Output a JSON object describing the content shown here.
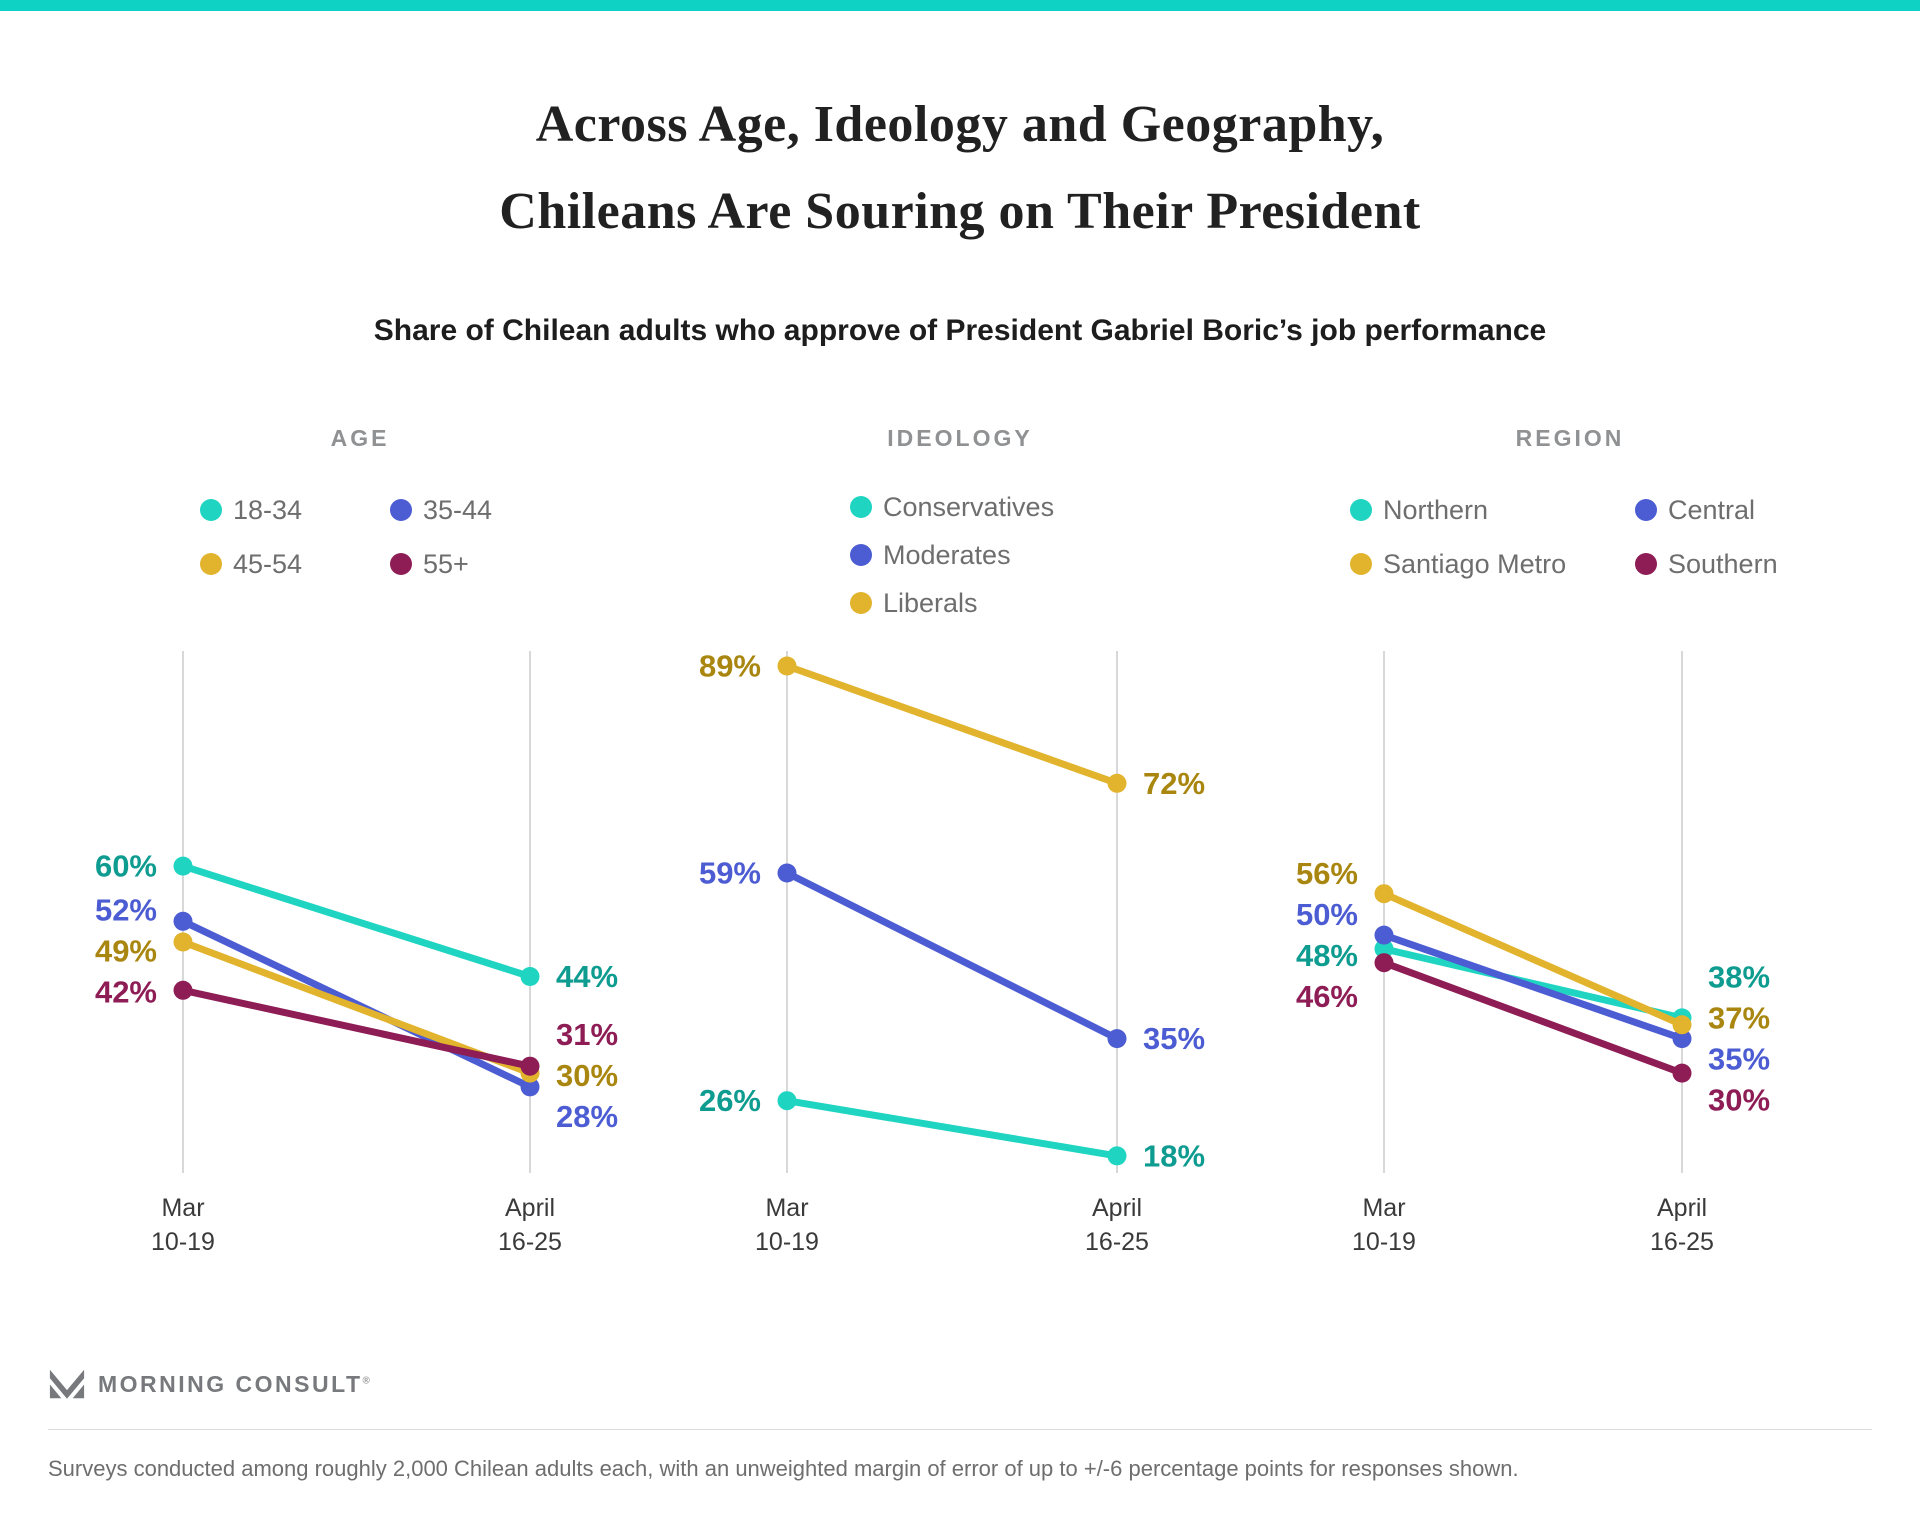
{
  "accent_color": "#0fd2c5",
  "header": {
    "title_lines": [
      "Across Age, Ideology and Geography,",
      "Chileans Are Souring on Their President"
    ],
    "subtitle": "Share of Chilean adults who approve of President Gabriel Boric’s job performance"
  },
  "x_axis": {
    "tick_lines": [
      [
        "Mar",
        "10-19"
      ],
      [
        "April",
        "16-25"
      ]
    ]
  },
  "chart_data": [
    {
      "type": "line",
      "title": "AGE",
      "x": [
        "Mar 10-19",
        "April 16-25"
      ],
      "ylim": [
        14,
        95
      ],
      "grid": "vertical-only",
      "legend_position": "above",
      "series": [
        {
          "name": "18-34",
          "values": [
            60,
            44
          ],
          "color": "#1fd5c2",
          "label_color": "#0e9b90"
        },
        {
          "name": "35-44",
          "values": [
            52,
            28
          ],
          "color": "#4c5cd2",
          "label_color": "#4c5cd2"
        },
        {
          "name": "45-54",
          "values": [
            49,
            30
          ],
          "color": "#e2b32d",
          "label_color": "#a9860f"
        },
        {
          "name": "55+",
          "values": [
            42,
            31
          ],
          "color": "#8e1d55",
          "label_color": "#8e1d55"
        }
      ]
    },
    {
      "type": "line",
      "title": "IDEOLOGY",
      "x": [
        "Mar 10-19",
        "April 16-25"
      ],
      "ylim": [
        14,
        95
      ],
      "grid": "vertical-only",
      "legend_position": "above",
      "series": [
        {
          "name": "Conservatives",
          "values": [
            26,
            18
          ],
          "color": "#1fd5c2",
          "label_color": "#0e9b90"
        },
        {
          "name": "Moderates",
          "values": [
            59,
            35
          ],
          "color": "#4c5cd2",
          "label_color": "#4c5cd2"
        },
        {
          "name": "Liberals",
          "values": [
            89,
            72
          ],
          "color": "#e2b32d",
          "label_color": "#a9860f"
        }
      ]
    },
    {
      "type": "line",
      "title": "REGION",
      "x": [
        "Mar 10-19",
        "April 16-25"
      ],
      "ylim": [
        14,
        95
      ],
      "grid": "vertical-only",
      "legend_position": "above",
      "series": [
        {
          "name": "Northern",
          "values": [
            48,
            38
          ],
          "color": "#1fd5c2",
          "label_color": "#0e9b90"
        },
        {
          "name": "Central",
          "values": [
            50,
            35
          ],
          "color": "#4c5cd2",
          "label_color": "#4c5cd2"
        },
        {
          "name": "Santiago Metro",
          "values": [
            56,
            37
          ],
          "color": "#e2b32d",
          "label_color": "#a9860f"
        },
        {
          "name": "Southern",
          "values": [
            46,
            30
          ],
          "color": "#8e1d55",
          "label_color": "#8e1d55"
        }
      ]
    }
  ],
  "footer": {
    "brand": "MORNING CONSULT",
    "registered": "®",
    "note": "Surveys conducted among roughly 2,000 Chilean adults each, with an unweighted margin of error of up to +/-6 percentage points for responses shown."
  }
}
